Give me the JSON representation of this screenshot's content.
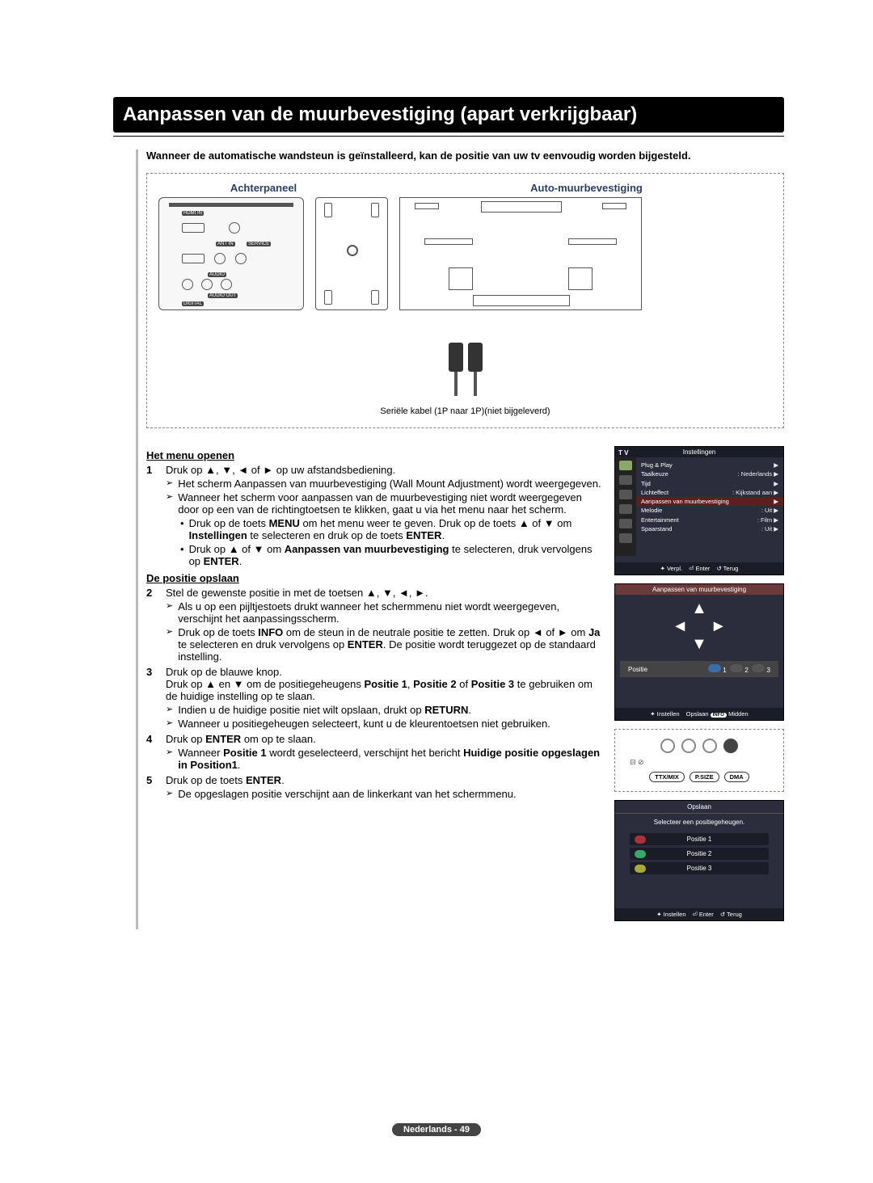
{
  "title": "Aanpassen van de muurbevestiging (apart verkrijgbaar)",
  "intro": "Wanneer de automatische wandsteun is geïnstalleerd, kan de positie van uw tv eenvoudig worden bijgesteld.",
  "diagram": {
    "rear_label": "Achterpaneel",
    "mount_label": "Auto-muurbevestiging",
    "ports": {
      "hdmi": "HDMI IN",
      "ant": "ANT IN",
      "service": "SERVICE",
      "audio": "AUDIO",
      "audioout": "AUDIO OUT",
      "digital": "DIGITAL"
    },
    "cable_label": "Seriële kabel (1P naar 1P)(niet bijgeleverd)"
  },
  "section_open": "Het menu openen",
  "steps_open": [
    {
      "n": "1",
      "text": "Druk op ▲, ▼, ◄ of ► op uw afstandsbediening.",
      "subs": [
        "Het scherm Aanpassen van muurbevestiging (Wall Mount Adjustment) wordt weergegeven.",
        "Wanneer het scherm voor aanpassen van de muurbevestiging niet wordt weergegeven door op een van de richtingtoetsen te klikken, gaat u via het menu naar het scherm."
      ],
      "subs2": [
        "Druk op de toets MENU om het menu weer te geven. Druk op de toets ▲ of ▼ om Instellingen te selecteren en druk op de toets ENTER.",
        "Druk op ▲ of ▼ om Aanpassen van muurbevestiging te selecteren, druk vervolgens op ENTER."
      ]
    }
  ],
  "section_save": "De positie opslaan",
  "steps_save": [
    {
      "n": "2",
      "text": "Stel de gewenste positie in met de toetsen ▲, ▼, ◄, ►.",
      "subs": [
        "Als u op een pijltjestoets drukt wanneer het schermmenu niet wordt weergegeven, verschijnt het aanpassingsscherm.",
        "Druk op de toets INFO om de steun in de neutrale positie te zetten. Druk op ◄ of ► om Ja te selecteren en druk vervolgens op ENTER. De positie wordt teruggezet op de standaard instelling."
      ]
    },
    {
      "n": "3",
      "text": "Druk op de blauwe knop.",
      "text2": "Druk op ▲ en ▼ om de positiegeheugens Positie 1, Positie 2 of Positie 3 te gebruiken om de huidige instelling op te slaan.",
      "subs": [
        "Indien u de huidige positie niet wilt opslaan, drukt op RETURN.",
        "Wanneer u positiegeheugen selecteert, kunt u de kleurentoetsen niet gebruiken."
      ]
    },
    {
      "n": "4",
      "text": "Druk op ENTER om op te slaan.",
      "subs": [
        "Wanneer Positie 1 wordt geselecteerd, verschijnt het bericht Huidige positie opgeslagen in Position1."
      ]
    },
    {
      "n": "5",
      "text": "Druk op de toets ENTER.",
      "subs": [
        "De opgeslagen positie verschijnt aan de linkerkant van het schermmenu."
      ]
    }
  ],
  "screen1": {
    "tv": "T V",
    "title": "Instellingen",
    "rows": [
      {
        "k": "Plug & Play",
        "v": ""
      },
      {
        "k": "Taalkeuze",
        "v": ": Nederlands"
      },
      {
        "k": "Tijd",
        "v": ""
      },
      {
        "k": "Lichteffect",
        "v": ": Kijkstand aan"
      },
      {
        "k": "Aanpassen van  muurbevestiging",
        "v": "",
        "hi": true
      },
      {
        "k": "Melodie",
        "v": ": Uit"
      },
      {
        "k": "Entertainment",
        "v": ": Film"
      },
      {
        "k": "Spaarstand",
        "v": ": Uit"
      }
    ],
    "status": {
      "move": "Verpl.",
      "enter": "Enter",
      "return": "Terug"
    }
  },
  "screen2": {
    "title": "Aanpassen van  muurbevestiging",
    "positie": "Positie",
    "n1": "1",
    "n2": "2",
    "n3": "3",
    "instellen": "Instellen",
    "opslaan": "Opslaan",
    "info": "INFO",
    "midden": "Midden"
  },
  "screen3": {
    "b1": "TTX/MIX",
    "b2": "P.SIZE",
    "b3": "DMA"
  },
  "screen4": {
    "title": "Opslaan",
    "sub": "Selecteer een positiegeheugen.",
    "p1": "Positie 1",
    "p2": "Positie 2",
    "p3": "Positie 3",
    "instellen": "Instellen",
    "enter": "Enter",
    "terug": "Terug"
  },
  "footer": "Nederlands - 49"
}
